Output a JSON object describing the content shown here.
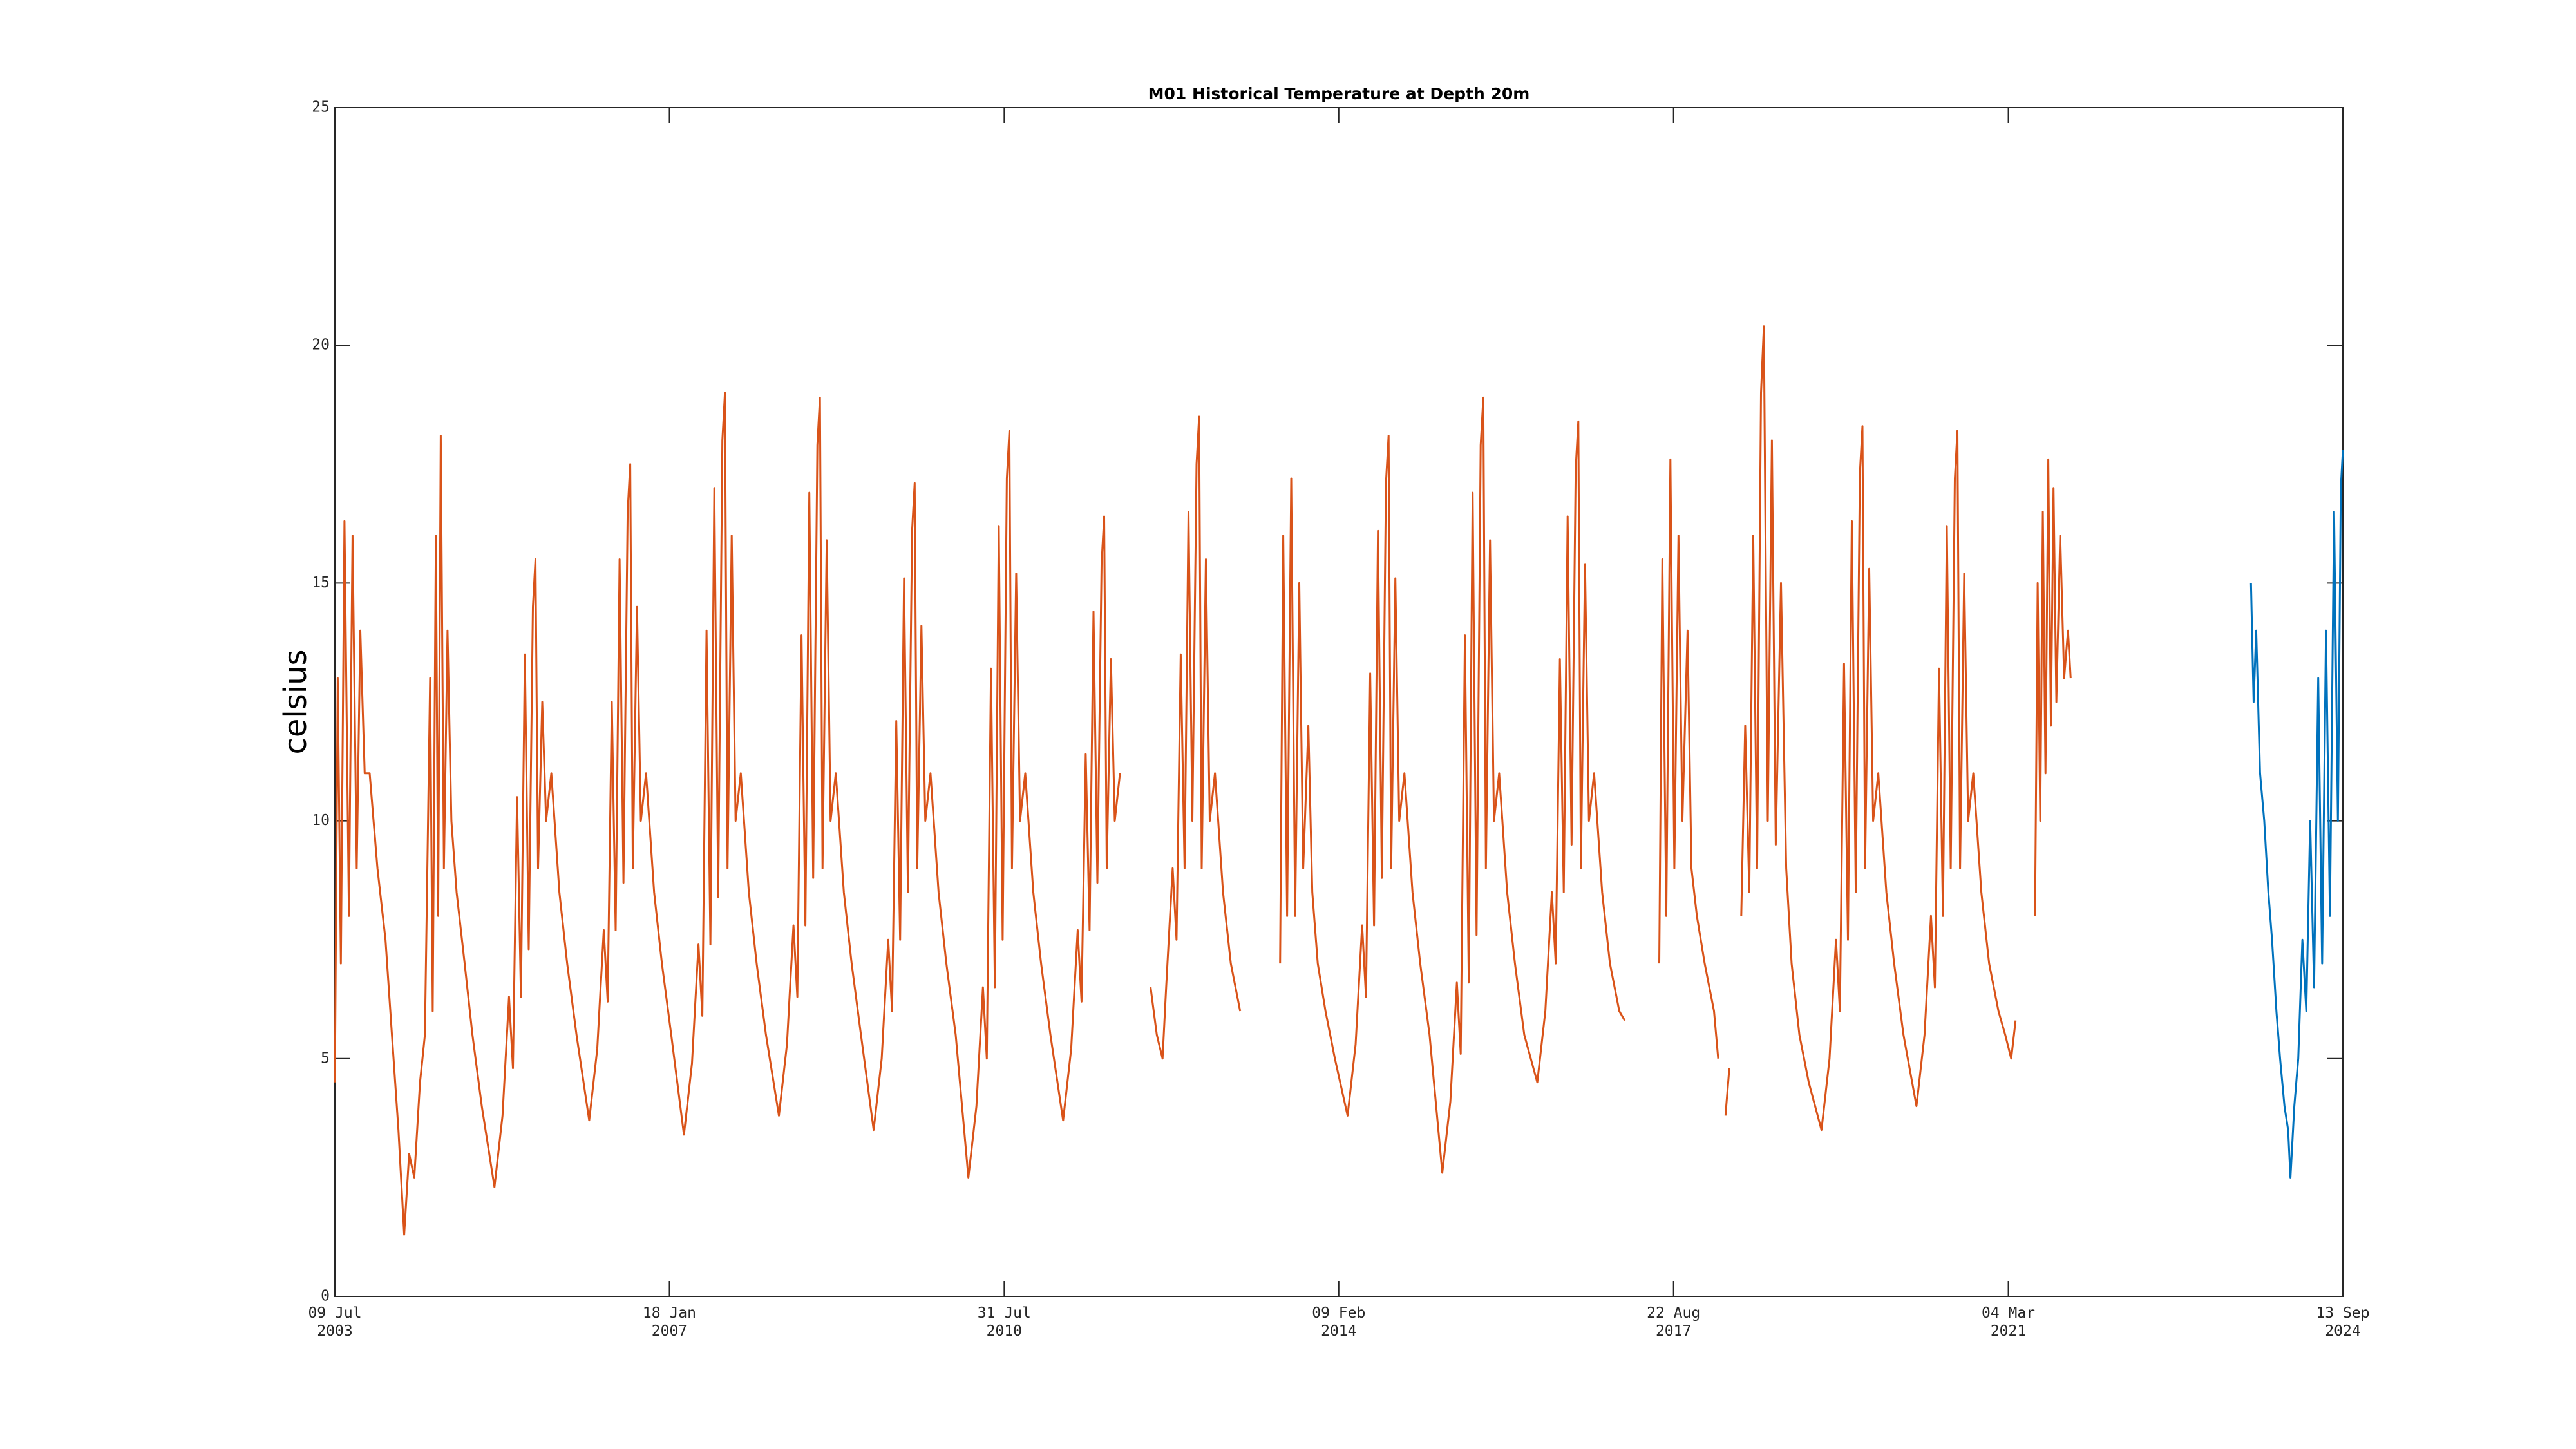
{
  "chart_data": {
    "type": "line",
    "title": "M01 Historical Temperature at Depth 20m",
    "y_label": "celsius",
    "xlim": [
      "2003-07-09",
      "2024-09-13"
    ],
    "xticks": [
      {
        "value": "2003-07-09",
        "label": "09 Jul\n2003"
      },
      {
        "value": "2007-01-18",
        "label": "18 Jan\n2007"
      },
      {
        "value": "2010-07-31",
        "label": "31 Jul\n2010"
      },
      {
        "value": "2014-02-09",
        "label": "09 Feb\n2014"
      },
      {
        "value": "2017-08-22",
        "label": "22 Aug\n2017"
      },
      {
        "value": "2021-03-04",
        "label": "04 Mar\n2021"
      },
      {
        "value": "2024-09-13",
        "label": "13 Sep\n2024"
      }
    ],
    "ylim": [
      0,
      25
    ],
    "yticks": [
      0,
      5,
      10,
      15,
      20,
      25
    ],
    "series": [
      {
        "color": "#D95319",
        "x": [
          "2003-07-09",
          "2003-07-20",
          "2003-08-01",
          "2003-08-15",
          "2003-09-01",
          "2003-09-15",
          "2003-10-01",
          "2003-10-15",
          "2003-11-01",
          "2003-11-20",
          "2003-12-20",
          "2004-01-20",
          "2004-02-20",
          "2004-03-10",
          "2004-04-01",
          "2004-04-20",
          "2004-05-10",
          "2004-06-01",
          "2004-06-20",
          "2004-07-10",
          "2004-07-20",
          "2004-08-01",
          "2004-08-10",
          "2004-08-20",
          "2004-09-01",
          "2004-09-15",
          "2004-09-30",
          "2004-10-20",
          "2004-11-20",
          "2004-12-20",
          "2005-01-25",
          "2005-03-15",
          "2005-04-15",
          "2005-05-10",
          "2005-05-25",
          "2005-06-10",
          "2005-06-25",
          "2005-07-10",
          "2005-07-25",
          "2005-08-10",
          "2005-08-20",
          "2005-08-30",
          "2005-09-15",
          "2005-09-30",
          "2005-10-20",
          "2005-11-20",
          "2005-12-20",
          "2006-01-25",
          "2006-03-15",
          "2006-04-15",
          "2006-05-10",
          "2006-05-25",
          "2006-06-10",
          "2006-06-25",
          "2006-07-10",
          "2006-07-25",
          "2006-08-10",
          "2006-08-20",
          "2006-08-30",
          "2006-09-15",
          "2006-09-30",
          "2006-10-20",
          "2006-11-20",
          "2006-12-20",
          "2007-01-25",
          "2007-03-15",
          "2007-04-15",
          "2007-05-10",
          "2007-05-25",
          "2007-06-10",
          "2007-06-25",
          "2007-07-10",
          "2007-07-25",
          "2007-08-10",
          "2007-08-20",
          "2007-08-30",
          "2007-09-15",
          "2007-09-30",
          "2007-10-20",
          "2007-11-20",
          "2007-12-20",
          "2008-01-25",
          "2008-03-15",
          "2008-04-15",
          "2008-05-10",
          "2008-05-25",
          "2008-06-10",
          "2008-06-25",
          "2008-07-10",
          "2008-07-25",
          "2008-08-10",
          "2008-08-20",
          "2008-08-30",
          "2008-09-15",
          "2008-09-30",
          "2008-10-20",
          "2008-11-20",
          "2008-12-20",
          "2009-01-25",
          "2009-03-15",
          "2009-04-15",
          "2009-05-10",
          "2009-05-25",
          "2009-06-10",
          "2009-06-25",
          "2009-07-10",
          "2009-07-25",
          "2009-08-10",
          "2009-08-20",
          "2009-08-30",
          "2009-09-15",
          "2009-09-30",
          "2009-10-20",
          "2009-11-20",
          "2009-12-20",
          "2010-01-25",
          "2010-03-15",
          "2010-04-15",
          "2010-05-10",
          "2010-05-25",
          "2010-06-10",
          "2010-06-25",
          "2010-07-10",
          "2010-07-25",
          "2010-08-10",
          "2010-08-20",
          "2010-08-30",
          "2010-09-15",
          "2010-09-30",
          "2010-10-20",
          "2010-11-20",
          "2010-12-20",
          "2011-01-25",
          "2011-03-15",
          "2011-04-15",
          "2011-05-10",
          "2011-05-25",
          "2011-06-10",
          "2011-06-25",
          "2011-07-10",
          "2011-07-25",
          "2011-08-10",
          "2011-08-20",
          "2011-08-30",
          "2011-09-15",
          "2011-09-30",
          "2011-10-20",
          "2011-12-01",
          "2012-02-15",
          "2012-03-10",
          "2012-04-01",
          "2012-04-15",
          "2012-05-10",
          "2012-05-25",
          "2012-06-10",
          "2012-06-25",
          "2012-07-10",
          "2012-07-25",
          "2012-08-10",
          "2012-08-20",
          "2012-08-30",
          "2012-09-15",
          "2012-09-30",
          "2012-10-20",
          "2012-11-20",
          "2012-12-20",
          "2013-01-25",
          "2013-03-15",
          "2013-06-28",
          "2013-07-10",
          "2013-07-25",
          "2013-08-10",
          "2013-08-25",
          "2013-09-10",
          "2013-09-25",
          "2013-10-15",
          "2013-10-30",
          "2013-11-20",
          "2013-12-20",
          "2014-01-25",
          "2014-03-15",
          "2014-04-15",
          "2014-05-10",
          "2014-05-25",
          "2014-06-10",
          "2014-06-25",
          "2014-07-10",
          "2014-07-25",
          "2014-08-10",
          "2014-08-20",
          "2014-08-30",
          "2014-09-15",
          "2014-09-30",
          "2014-10-20",
          "2014-11-20",
          "2014-12-20",
          "2015-01-25",
          "2015-03-15",
          "2015-04-15",
          "2015-05-10",
          "2015-05-25",
          "2015-06-10",
          "2015-06-25",
          "2015-07-10",
          "2015-07-25",
          "2015-08-10",
          "2015-08-20",
          "2015-08-30",
          "2015-09-15",
          "2015-09-30",
          "2015-10-20",
          "2015-11-20",
          "2015-12-20",
          "2016-01-25",
          "2016-03-15",
          "2016-04-15",
          "2016-05-10",
          "2016-05-25",
          "2016-06-10",
          "2016-06-25",
          "2016-07-10",
          "2016-07-25",
          "2016-08-10",
          "2016-08-20",
          "2016-08-30",
          "2016-09-15",
          "2016-09-30",
          "2016-10-20",
          "2016-11-20",
          "2016-12-20",
          "2017-01-25",
          "2017-02-15",
          "2017-04-15",
          "2017-06-28",
          "2017-07-10",
          "2017-07-25",
          "2017-08-10",
          "2017-08-25",
          "2017-09-10",
          "2017-09-25",
          "2017-10-15",
          "2017-10-30",
          "2017-11-20",
          "2017-12-20",
          "2018-01-25",
          "2018-02-10",
          "2018-02-25",
          "2018-03-10",
          "2018-03-25",
          "2018-04-15",
          "2018-05-10",
          "2018-05-25",
          "2018-06-10",
          "2018-06-25",
          "2018-07-10",
          "2018-07-25",
          "2018-08-05",
          "2018-08-20",
          "2018-09-05",
          "2018-09-20",
          "2018-10-10",
          "2018-10-30",
          "2018-11-20",
          "2018-12-20",
          "2019-01-25",
          "2019-03-15",
          "2019-04-15",
          "2019-05-10",
          "2019-05-25",
          "2019-06-10",
          "2019-06-25",
          "2019-07-10",
          "2019-07-25",
          "2019-08-10",
          "2019-08-20",
          "2019-08-30",
          "2019-09-15",
          "2019-09-30",
          "2019-10-20",
          "2019-11-20",
          "2019-12-20",
          "2020-01-25",
          "2020-03-15",
          "2020-04-15",
          "2020-05-10",
          "2020-05-25",
          "2020-06-10",
          "2020-06-25",
          "2020-07-10",
          "2020-07-25",
          "2020-08-10",
          "2020-08-20",
          "2020-08-30",
          "2020-09-15",
          "2020-09-30",
          "2020-10-20",
          "2020-11-20",
          "2020-12-20",
          "2021-01-25",
          "2021-02-20",
          "2021-03-15",
          "2021-04-01",
          "2021-05-01",
          "2021-06-15",
          "2021-06-25",
          "2021-07-05",
          "2021-07-15",
          "2021-07-25",
          "2021-08-05",
          "2021-08-15",
          "2021-08-25",
          "2021-09-05",
          "2021-09-20",
          "2021-10-05",
          "2021-10-20",
          "2021-10-30"
        ],
        "values": [
          4.5,
          13,
          7,
          16.3,
          8,
          16,
          9,
          14,
          11,
          11,
          9,
          7.5,
          5,
          3.5,
          1.3,
          3,
          2.5,
          4.5,
          5.5,
          13,
          6,
          16,
          8,
          18.1,
          9,
          14,
          10,
          8.5,
          7,
          5.5,
          4,
          2.3,
          3.8,
          6.3,
          4.8,
          10.5,
          6.3,
          13.5,
          7.3,
          14.5,
          15.5,
          9,
          12.5,
          10,
          11,
          8.5,
          7,
          5.5,
          3.7,
          5.2,
          7.7,
          6.2,
          12.5,
          7.7,
          15.5,
          8.7,
          16.5,
          17.5,
          9,
          14.5,
          10,
          11,
          8.5,
          7,
          5.5,
          3.4,
          4.9,
          7.4,
          5.9,
          14,
          7.4,
          17,
          8.4,
          18,
          19,
          9,
          16,
          10,
          11,
          8.5,
          7,
          5.5,
          3.8,
          5.3,
          7.8,
          6.3,
          13.9,
          7.8,
          16.9,
          8.8,
          17.9,
          18.9,
          9,
          15.9,
          10,
          11,
          8.5,
          7,
          5.5,
          3.5,
          5,
          7.5,
          6,
          12.1,
          7.5,
          15.1,
          8.5,
          16.1,
          17.1,
          9,
          14.1,
          10,
          11,
          8.5,
          7,
          5.5,
          2.5,
          4,
          6.5,
          5,
          13.2,
          6.5,
          16.2,
          7.5,
          17.2,
          18.2,
          9,
          15.2,
          10,
          11,
          8.5,
          7,
          5.5,
          3.7,
          5.2,
          7.7,
          6.2,
          11.4,
          7.7,
          14.4,
          8.7,
          15.4,
          16.4,
          9,
          13.4,
          10,
          11,
          null,
          6.5,
          5.5,
          5,
          6.5,
          9,
          7.5,
          13.5,
          9,
          16.5,
          10,
          17.5,
          18.5,
          9,
          15.5,
          10,
          11,
          8.5,
          7,
          6,
          null,
          7,
          16,
          8,
          17.2,
          8,
          15,
          9,
          12,
          8.5,
          7,
          6,
          5,
          3.8,
          5.3,
          7.8,
          6.3,
          13.1,
          7.8,
          16.1,
          8.8,
          17.1,
          18.1,
          9,
          15.1,
          10,
          11,
          8.5,
          7,
          5.5,
          2.6,
          4.1,
          6.6,
          5.1,
          13.9,
          6.6,
          16.9,
          7.6,
          17.9,
          18.9,
          9,
          15.9,
          10,
          11,
          8.5,
          7,
          5.5,
          4.5,
          6,
          8.5,
          7,
          13.4,
          8.5,
          16.4,
          9.5,
          17.4,
          18.4,
          9,
          15.4,
          10,
          11,
          8.5,
          7,
          6,
          5.8,
          null,
          7,
          15.5,
          8,
          17.6,
          9,
          16,
          10,
          14,
          9,
          8,
          7,
          6,
          5,
          null,
          3.8,
          4.8,
          null,
          8,
          12,
          8.5,
          16,
          9,
          19,
          20.4,
          10,
          18,
          9.5,
          15,
          9,
          7,
          5.5,
          4.5,
          3.5,
          5,
          7.5,
          6,
          13.3,
          7.5,
          16.3,
          8.5,
          17.3,
          18.3,
          9,
          15.3,
          10,
          11,
          8.5,
          7,
          5.5,
          4,
          5.5,
          8,
          6.5,
          13.2,
          8,
          16.2,
          9,
          17.2,
          18.2,
          9,
          15.2,
          10,
          11,
          8.5,
          7,
          6,
          5.5,
          5,
          5.8,
          null,
          8,
          15,
          10,
          16.5,
          11,
          17.6,
          12,
          17,
          12.5,
          16,
          13,
          14,
          13
        ]
      },
      {
        "color": "#0072BD",
        "x": [
          "2023-09-25",
          "2023-10-05",
          "2023-10-15",
          "2023-10-30",
          "2023-11-15",
          "2023-12-01",
          "2023-12-15",
          "2024-01-01",
          "2024-01-15",
          "2024-02-01",
          "2024-02-15",
          "2024-02-24",
          "2024-03-10",
          "2024-03-25",
          "2024-04-10",
          "2024-04-25",
          "2024-05-10",
          "2024-05-25",
          "2024-06-10",
          "2024-06-25",
          "2024-07-10",
          "2024-07-25",
          "2024-08-10",
          "2024-08-25",
          "2024-09-05",
          "2024-09-13"
        ],
        "values": [
          15,
          12.5,
          14,
          11,
          10,
          8.5,
          7.5,
          6,
          5,
          4,
          3.5,
          2.5,
          4,
          5,
          7.5,
          6,
          10,
          6.5,
          13,
          7,
          14,
          8,
          16.5,
          10,
          17,
          17.8
        ]
      }
    ]
  }
}
